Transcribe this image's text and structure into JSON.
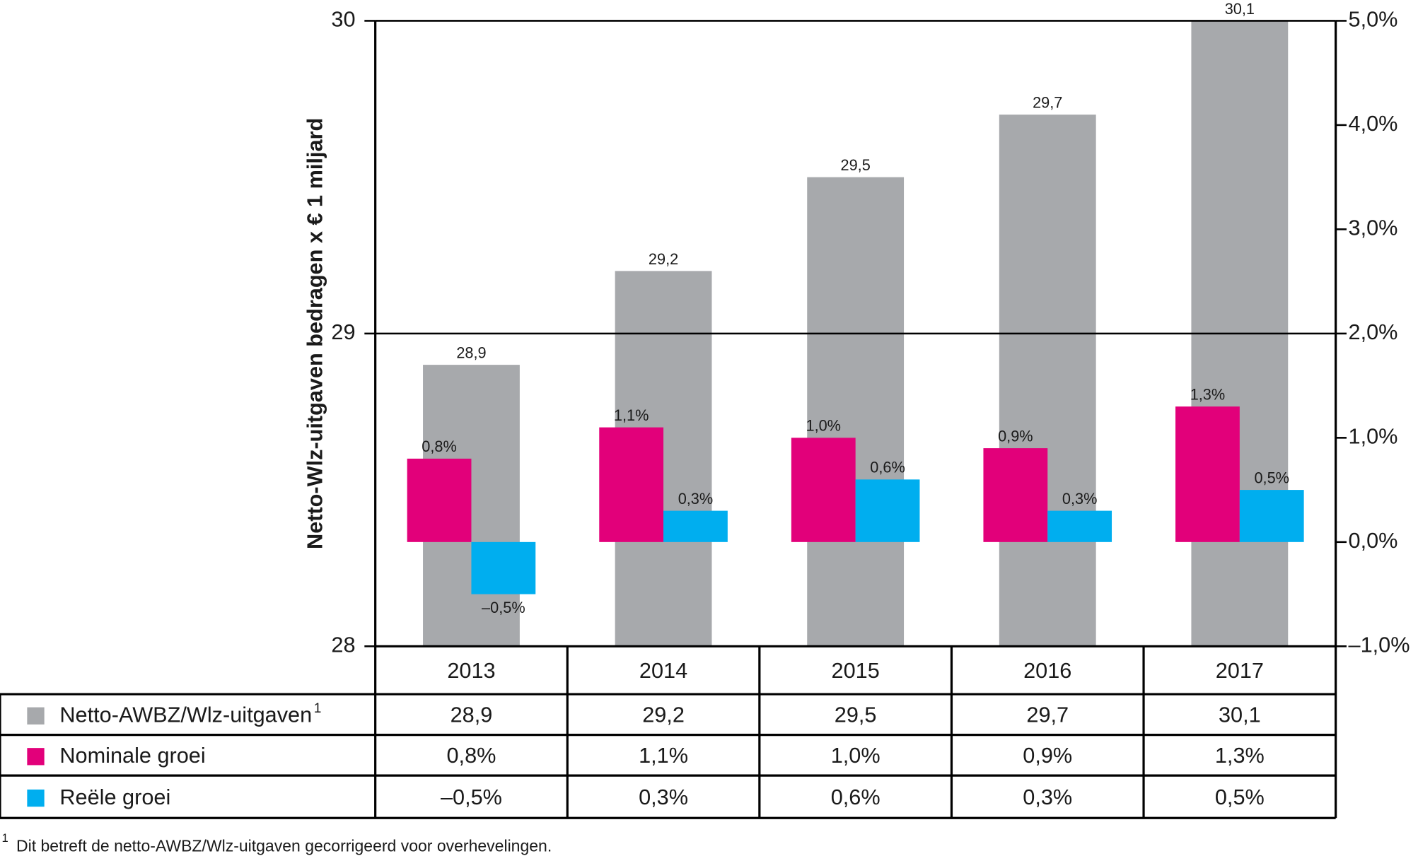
{
  "chart_data": {
    "type": "bar",
    "y_axis_label": "Netto-Wlz-uitgaven bedragen x € 1 miljard",
    "categories": [
      "2013",
      "2014",
      "2015",
      "2016",
      "2017"
    ],
    "series": [
      {
        "name": "Netto-AWBZ/Wlz-uitgaven",
        "color": "#a7a9ac",
        "values": [
          28.9,
          29.2,
          29.5,
          29.7,
          30.1
        ],
        "value_labels": [
          "28,9",
          "29,2",
          "29,5",
          "29,7",
          "30,1"
        ]
      },
      {
        "name": "Nominale groei",
        "color": "#e2007a",
        "axis": "y2",
        "values": [
          0.8,
          1.1,
          1.0,
          0.9,
          1.3
        ],
        "value_labels": [
          "0,8%",
          "1,1%",
          "1,0%",
          "0,9%",
          "1,3%"
        ]
      },
      {
        "name": "Reële groei",
        "color": "#00aeef",
        "axis": "y2",
        "values": [
          -0.5,
          0.3,
          0.6,
          0.3,
          0.5
        ],
        "value_labels": [
          "–0,5%",
          "0,3%",
          "0,6%",
          "0,3%",
          "0,5%"
        ]
      }
    ],
    "ylim": [
      28,
      30
    ],
    "yticks": [
      28,
      29,
      30
    ],
    "y2lim": [
      -1,
      5
    ],
    "y2ticks": [
      {
        "value": -1,
        "label": "–1,0%"
      },
      {
        "value": 0,
        "label": "0,0%"
      },
      {
        "value": 1,
        "label": "1,0%"
      },
      {
        "value": 2,
        "label": "2,0%"
      },
      {
        "value": 3,
        "label": "3,0%"
      },
      {
        "value": 4,
        "label": "4,0%"
      },
      {
        "value": 5,
        "label": "5,0%"
      }
    ],
    "grid": true,
    "footnote": {
      "marker": "1",
      "text": "Dit betreft de netto-AWBZ/Wlz-uitgaven gecorrigeerd voor overhevelingen."
    }
  }
}
